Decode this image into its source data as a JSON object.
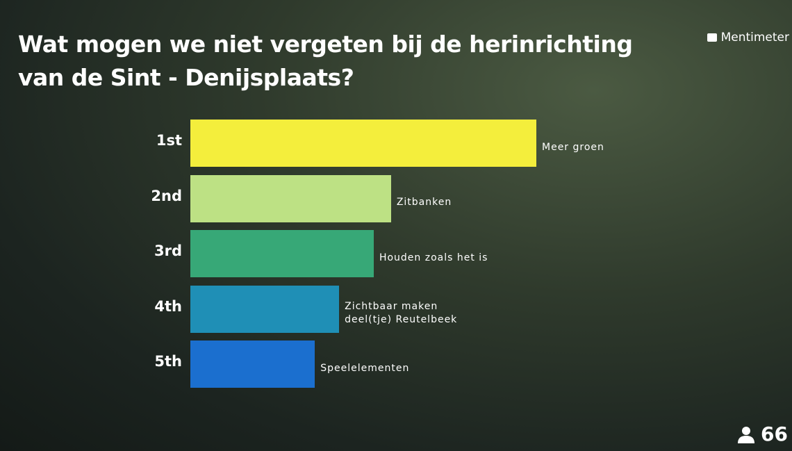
{
  "brand": "Mentimeter",
  "participants": 66,
  "chart_data": {
    "type": "bar",
    "orientation": "horizontal",
    "title": "Wat mogen we niet vergeten bij de herinrichting van de Sint - Denijsplaats?",
    "ranks": [
      "1st",
      "2nd",
      "3rd",
      "4th",
      "5th"
    ],
    "categories": [
      "Meer groen",
      "Zitbanken",
      "Houden zoals het is",
      "Zichtbaar maken deel(tje) Reutelbeek",
      "Speelelementen"
    ],
    "values": [
      100,
      58,
      53,
      43,
      36
    ],
    "colors": [
      "#f4ee3c",
      "#bde184",
      "#37a877",
      "#1f8fb6",
      "#1b6fcf"
    ],
    "xlim": [
      0,
      100
    ]
  }
}
